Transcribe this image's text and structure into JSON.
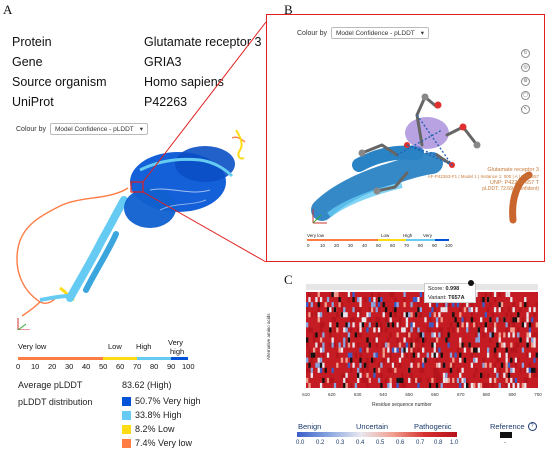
{
  "panels": {
    "a": "A",
    "b": "B",
    "c": "C"
  },
  "info": [
    {
      "key": "Protein",
      "value": "Glutamate receptor 3"
    },
    {
      "key": "Gene",
      "value": "GRIA3"
    },
    {
      "key": "Source organism",
      "value": "Homo sapiens"
    },
    {
      "key": "UniProt",
      "value": "P42263"
    }
  ],
  "viewer": {
    "colour_by_label": "Colour by",
    "colour_by_value": "Model Confidence - pLDDT"
  },
  "plddt_scale": {
    "very_low": "Very low",
    "low": "Low",
    "high": "High",
    "very_high_1": "Very",
    "very_high_2": "high",
    "ticks": [
      "0",
      "10",
      "20",
      "30",
      "40",
      "50",
      "60",
      "70",
      "80",
      "90",
      "100"
    ]
  },
  "stats": {
    "avg_label": "Average pLDDT",
    "avg_value": "83.62 (High)",
    "dist_label": "pLDDT distribution",
    "distribution": [
      {
        "text": "50.7% Very high",
        "color": "#0053d6"
      },
      {
        "text": "33.8% High",
        "color": "#65cbf3"
      },
      {
        "text": "8.2% Low",
        "color": "#ffdb13"
      },
      {
        "text": "7.4% Very low",
        "color": "#ff7d45"
      }
    ]
  },
  "tooltip_b": {
    "line1": "Glutamate receptor 3",
    "line2": "AF-P42263-F1 | Model 1 | Instance 1: 000 | A | THR 657",
    "line3": "UNP: P42263 657 T",
    "line4": "pLDDT: 72.69 (Confident)"
  },
  "heatmap": {
    "score_label": "Score:",
    "score_value": "0.998",
    "variant_label": "Variant:",
    "variant_value": "T657A",
    "y_axis_label": "Alternative amino acids",
    "x_axis_label": "Residue sequence number",
    "x_ticks": [
      "610",
      "620",
      "630",
      "640",
      "650",
      "660",
      "670",
      "680",
      "690",
      "700"
    ],
    "legend_benign": "Benign",
    "legend_uncertain": "Uncertain",
    "legend_pathogenic": "Pathogenic",
    "legend_reference": "Reference",
    "legend_ticks": [
      "0.0",
      "0.2",
      "0.3",
      "0.4",
      "0.5",
      "0.6",
      "0.7",
      "0.8",
      "1.0"
    ],
    "legend_dash": "-"
  }
}
